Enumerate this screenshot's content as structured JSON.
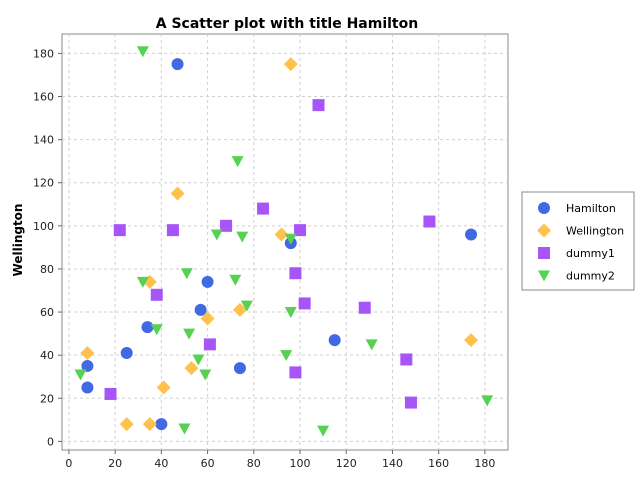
{
  "chart_data": {
    "type": "scatter",
    "title": "A Scatter plot with title Hamilton",
    "xlabel": "",
    "ylabel": "Wellington",
    "xlim": [
      -3,
      190
    ],
    "ylim": [
      -4,
      189
    ],
    "xticks": [
      0,
      20,
      40,
      60,
      80,
      100,
      120,
      140,
      160,
      180
    ],
    "yticks": [
      0,
      20,
      40,
      60,
      80,
      100,
      120,
      140,
      160,
      180
    ],
    "grid": true,
    "legend_position": "right",
    "series": [
      {
        "name": "Hamilton",
        "marker": "circle",
        "color": "#4169e1",
        "points": [
          [
            47,
            175
          ],
          [
            8,
            35
          ],
          [
            8,
            25
          ],
          [
            25,
            41
          ],
          [
            34,
            53
          ],
          [
            40,
            8
          ],
          [
            57,
            61
          ],
          [
            60,
            74
          ],
          [
            74,
            34
          ],
          [
            96,
            92
          ],
          [
            115,
            47
          ],
          [
            174,
            96
          ]
        ]
      },
      {
        "name": "Wellington",
        "marker": "diamond",
        "color": "#ffc04c",
        "points": [
          [
            96,
            175
          ],
          [
            47,
            115
          ],
          [
            8,
            41
          ],
          [
            25,
            8
          ],
          [
            35,
            74
          ],
          [
            35,
            8
          ],
          [
            41,
            25
          ],
          [
            53,
            34
          ],
          [
            60,
            57
          ],
          [
            74,
            61
          ],
          [
            92,
            96
          ],
          [
            174,
            47
          ]
        ]
      },
      {
        "name": "dummy1",
        "marker": "square",
        "color": "#a855f7",
        "points": [
          [
            108,
            156
          ],
          [
            22,
            98
          ],
          [
            45,
            98
          ],
          [
            68,
            100
          ],
          [
            84,
            108
          ],
          [
            100,
            98
          ],
          [
            156,
            102
          ],
          [
            38,
            68
          ],
          [
            98,
            78
          ],
          [
            102,
            64
          ],
          [
            128,
            62
          ],
          [
            61,
            45
          ],
          [
            146,
            38
          ],
          [
            98,
            32
          ],
          [
            148,
            18
          ],
          [
            18,
            22
          ]
        ]
      },
      {
        "name": "dummy2",
        "marker": "triangle-down",
        "color": "#56d152",
        "points": [
          [
            32,
            181
          ],
          [
            73,
            130
          ],
          [
            64,
            96
          ],
          [
            75,
            95
          ],
          [
            96,
            94
          ],
          [
            32,
            74
          ],
          [
            51,
            78
          ],
          [
            72,
            75
          ],
          [
            77,
            63
          ],
          [
            96,
            60
          ],
          [
            38,
            52
          ],
          [
            52,
            50
          ],
          [
            56,
            38
          ],
          [
            59,
            31
          ],
          [
            94,
            40
          ],
          [
            131,
            45
          ],
          [
            5,
            31
          ],
          [
            50,
            6
          ],
          [
            110,
            5
          ],
          [
            181,
            19
          ]
        ]
      }
    ]
  }
}
